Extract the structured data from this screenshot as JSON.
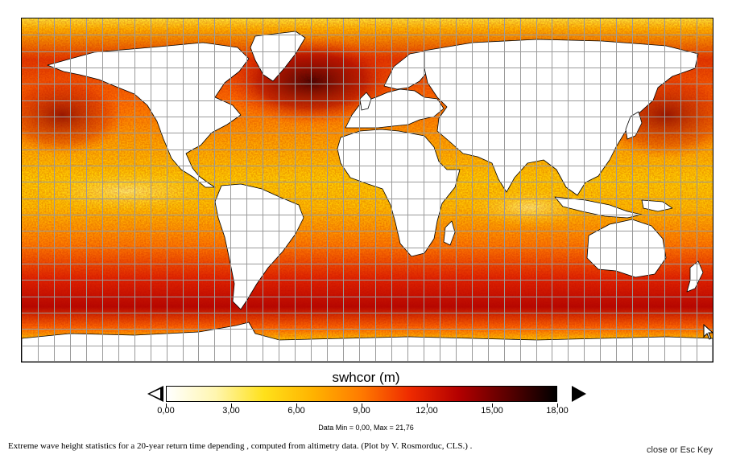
{
  "colorbar": {
    "title": "swhcor (m)",
    "ticks": [
      "0,00",
      "3,00",
      "6,00",
      "9,00",
      "12,00",
      "15,00",
      "18,00"
    ],
    "tick_values": [
      0,
      3,
      6,
      9,
      12,
      15,
      18
    ],
    "range": [
      0,
      18
    ],
    "colors": [
      "#ffffff",
      "#fff6b0",
      "#ffe11a",
      "#ffb300",
      "#ff7a00",
      "#ee2a00",
      "#b30000",
      "#5a0000",
      "#000000"
    ],
    "stats": "Data Min = 0,00, Max = 21,76"
  },
  "caption": "Extreme wave height statistics for a 20-year return time depending , computed from altimetry data. (Plot by V. Rosmorduc, CLS.) .",
  "close": {
    "text_close": "close",
    "text_or": " or ",
    "text_esc": "Esc Key"
  },
  "map": {
    "projection": "equirectangular",
    "land_color": "#ffffff",
    "coastline_color": "#000000",
    "grid_color": "#9a9a9a",
    "grid_columns": 43,
    "grid_rows": 21
  },
  "icons": {
    "left_arrow": "open-triangle-left",
    "right_arrow": "filled-triangle-right",
    "cursor": "mouse-pointer"
  }
}
